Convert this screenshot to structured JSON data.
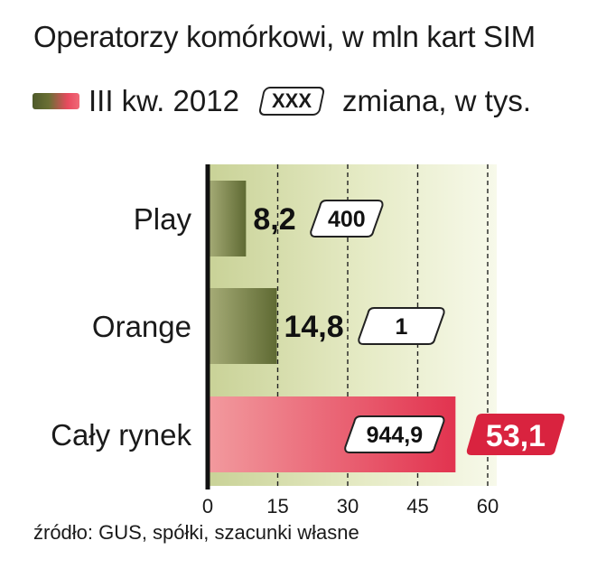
{
  "title": "Operatorzy komórkowi, w mln kart SIM",
  "legend": {
    "series_label": "III kw. 2012",
    "box_label": "XXX",
    "change_label": "zmiana, w tys."
  },
  "source": "źródło: GUS, spółki, szacunki własne",
  "chart_data": {
    "type": "bar",
    "orientation": "horizontal",
    "title": "Operatorzy komórkowi, w mln kart SIM",
    "categories": [
      "Play",
      "Orange",
      "Cały rynek"
    ],
    "values": [
      8.2,
      14.8,
      53.1
    ],
    "value_labels": [
      "8,2",
      "14,8",
      "53,1"
    ],
    "changes_thousands": [
      400,
      1,
      944.9
    ],
    "change_labels": [
      "400",
      "1",
      "944,9"
    ],
    "highlight": [
      false,
      false,
      true
    ],
    "xlim": [
      0,
      60
    ],
    "xticks": [
      0,
      15,
      30,
      45,
      60
    ],
    "grid": "vertical dashed",
    "colors": {
      "bar_green_dark": "#5f6a33",
      "bar_green_light": "#a7ad78",
      "bar_red": "#e2334f",
      "bar_red_light": "#f29a9e",
      "label_red": "#d9233f",
      "plot_bg_start": "#c9d297",
      "plot_bg_end": "#f7f9ea"
    }
  }
}
